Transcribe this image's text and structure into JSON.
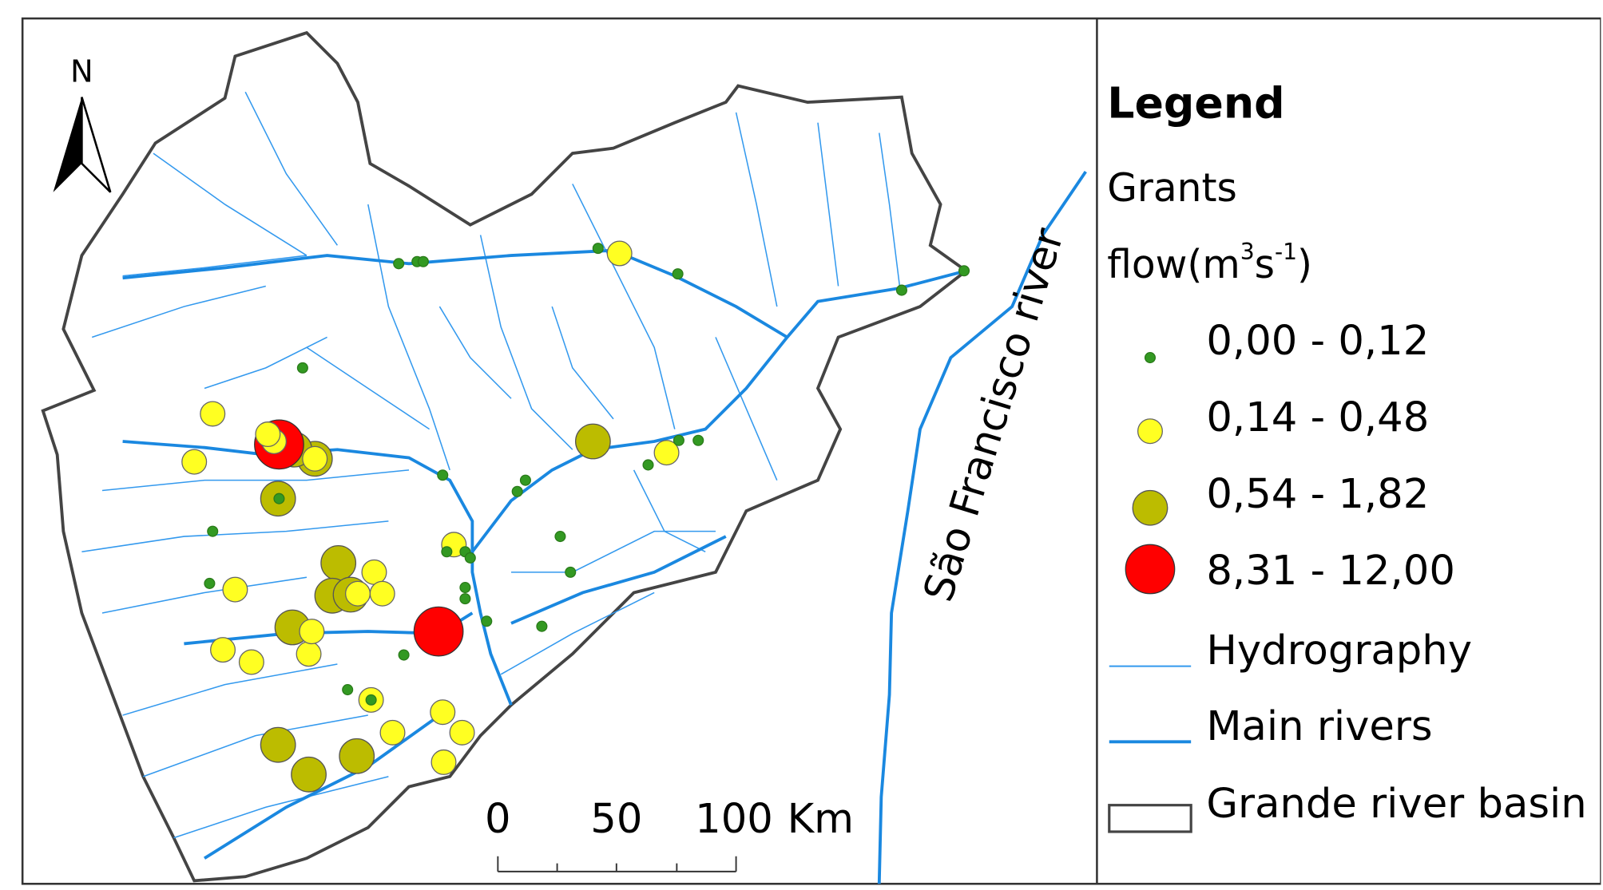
{
  "map": {
    "north": "N",
    "river_label": "São Francisco river",
    "scale_bar": {
      "labels": [
        "0",
        "50",
        "100"
      ],
      "unit": "Km"
    },
    "legend": {
      "title": "Legend",
      "subtitle": "Grants",
      "flow_label": "flow",
      "flow_unit": [
        "(m",
        "3",
        "s",
        "-1",
        ")"
      ],
      "classes": [
        "0,00 - 0,12",
        "0,14 - 0,48",
        "0,54 - 1,82",
        "8,31 - 12,00"
      ],
      "layers": [
        "Hydrography",
        "Main rivers",
        "Grande river basin"
      ]
    }
  }
}
